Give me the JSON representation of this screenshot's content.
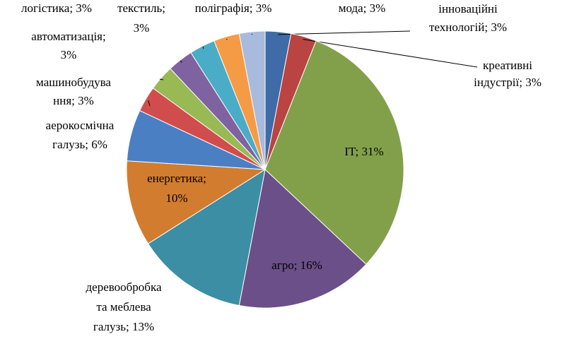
{
  "chart_data": {
    "type": "pie",
    "values": [
      3,
      3,
      31,
      16,
      13,
      10,
      6,
      3,
      3,
      3,
      3,
      3,
      3
    ],
    "value_labels": [
      "інноваційні\nтехнологій;  3%",
      "креативні\nіндустрії;  3%",
      "IT; 31%",
      "агро; 16%",
      "деревообробка\nта меблева\nгалузь; 13%",
      "енергетика;\n10%",
      "аерокосмічна\nгалузь; 6%",
      "машинобудува\nння; 3%",
      "автоматизація;\n3%",
      "логістика;  3%",
      "текстиль;\n3%",
      "поліграфія;  3%",
      "мода;  3%"
    ],
    "colors": [
      "#3f6ba8",
      "#b94441",
      "#82a04a",
      "#6a4f88",
      "#3b8ea4",
      "#d27c30",
      "#4a7fc4",
      "#d14d4d",
      "#98b954",
      "#7e63a0",
      "#4aacc6",
      "#f59b45",
      "#a9bbdc"
    ]
  }
}
